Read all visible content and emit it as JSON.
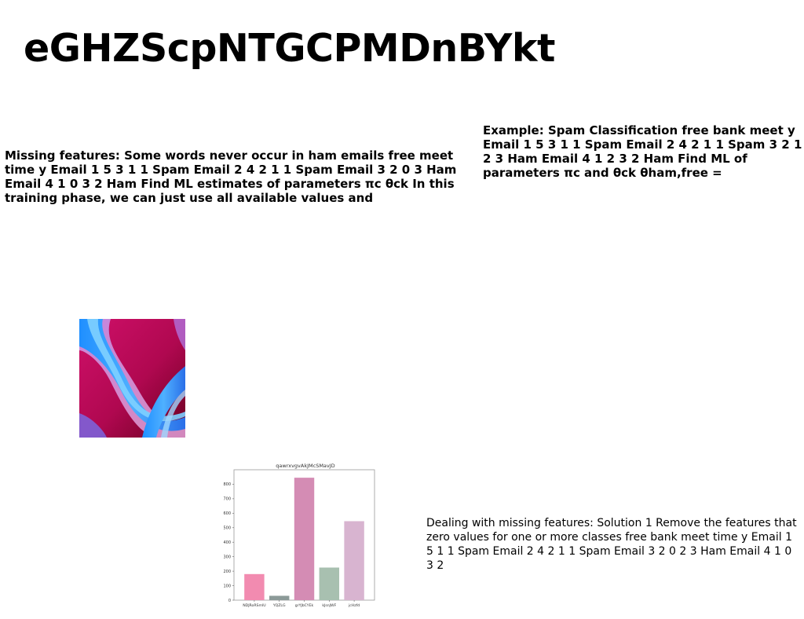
{
  "page": {
    "title": "eGHZScpNTGCPMDnBYkt"
  },
  "blocks": {
    "left": "Missing features: Some words never occur in ham emails free meet time y Email 1 5 3 1 1 Spam Email 2 4 2 1 1 Spam Email 3 2 0 3 Ham Email 4 1 0 3 2 Ham Find ML estimates of parameters πc θck In this training phase, we can just use all available values and",
    "right": "Example: Spam Classification free bank meet y Email 1 5 3 1 1 Spam Email 2 4 2 1 1 Spam 3 2 1 2 3 Ham Email 4 1 2 3 2 Ham Find ML of parameters πc and θck θham,free =",
    "bottom": "Dealing with missing features: Solution 1 Remove the features that zero values for one or more classes free bank meet time y Email 1 5 1 1 Spam Email 2 4 2 1 1 Spam Email 3 2 0 2 3 Ham Email 4 1 0 3 2"
  },
  "chart_data": {
    "type": "bar",
    "title": "qawrxvgvAkJMcSMavJD",
    "categories": [
      "NDJRoRSmlU",
      "YQZLG",
      "grYJbCYEk",
      "kJsnJWF",
      "jcHzfd"
    ],
    "values": [
      180,
      30,
      845,
      225,
      545
    ],
    "colors": [
      "#f28bb0",
      "#8c9a98",
      "#d48cb4",
      "#a8c0b0",
      "#d8b4d0"
    ],
    "ylim": [
      0,
      900
    ],
    "yticks": [
      0,
      100,
      200,
      300,
      400,
      500,
      600,
      700,
      800
    ],
    "xlabel": "",
    "ylabel": "",
    "grid": false
  }
}
